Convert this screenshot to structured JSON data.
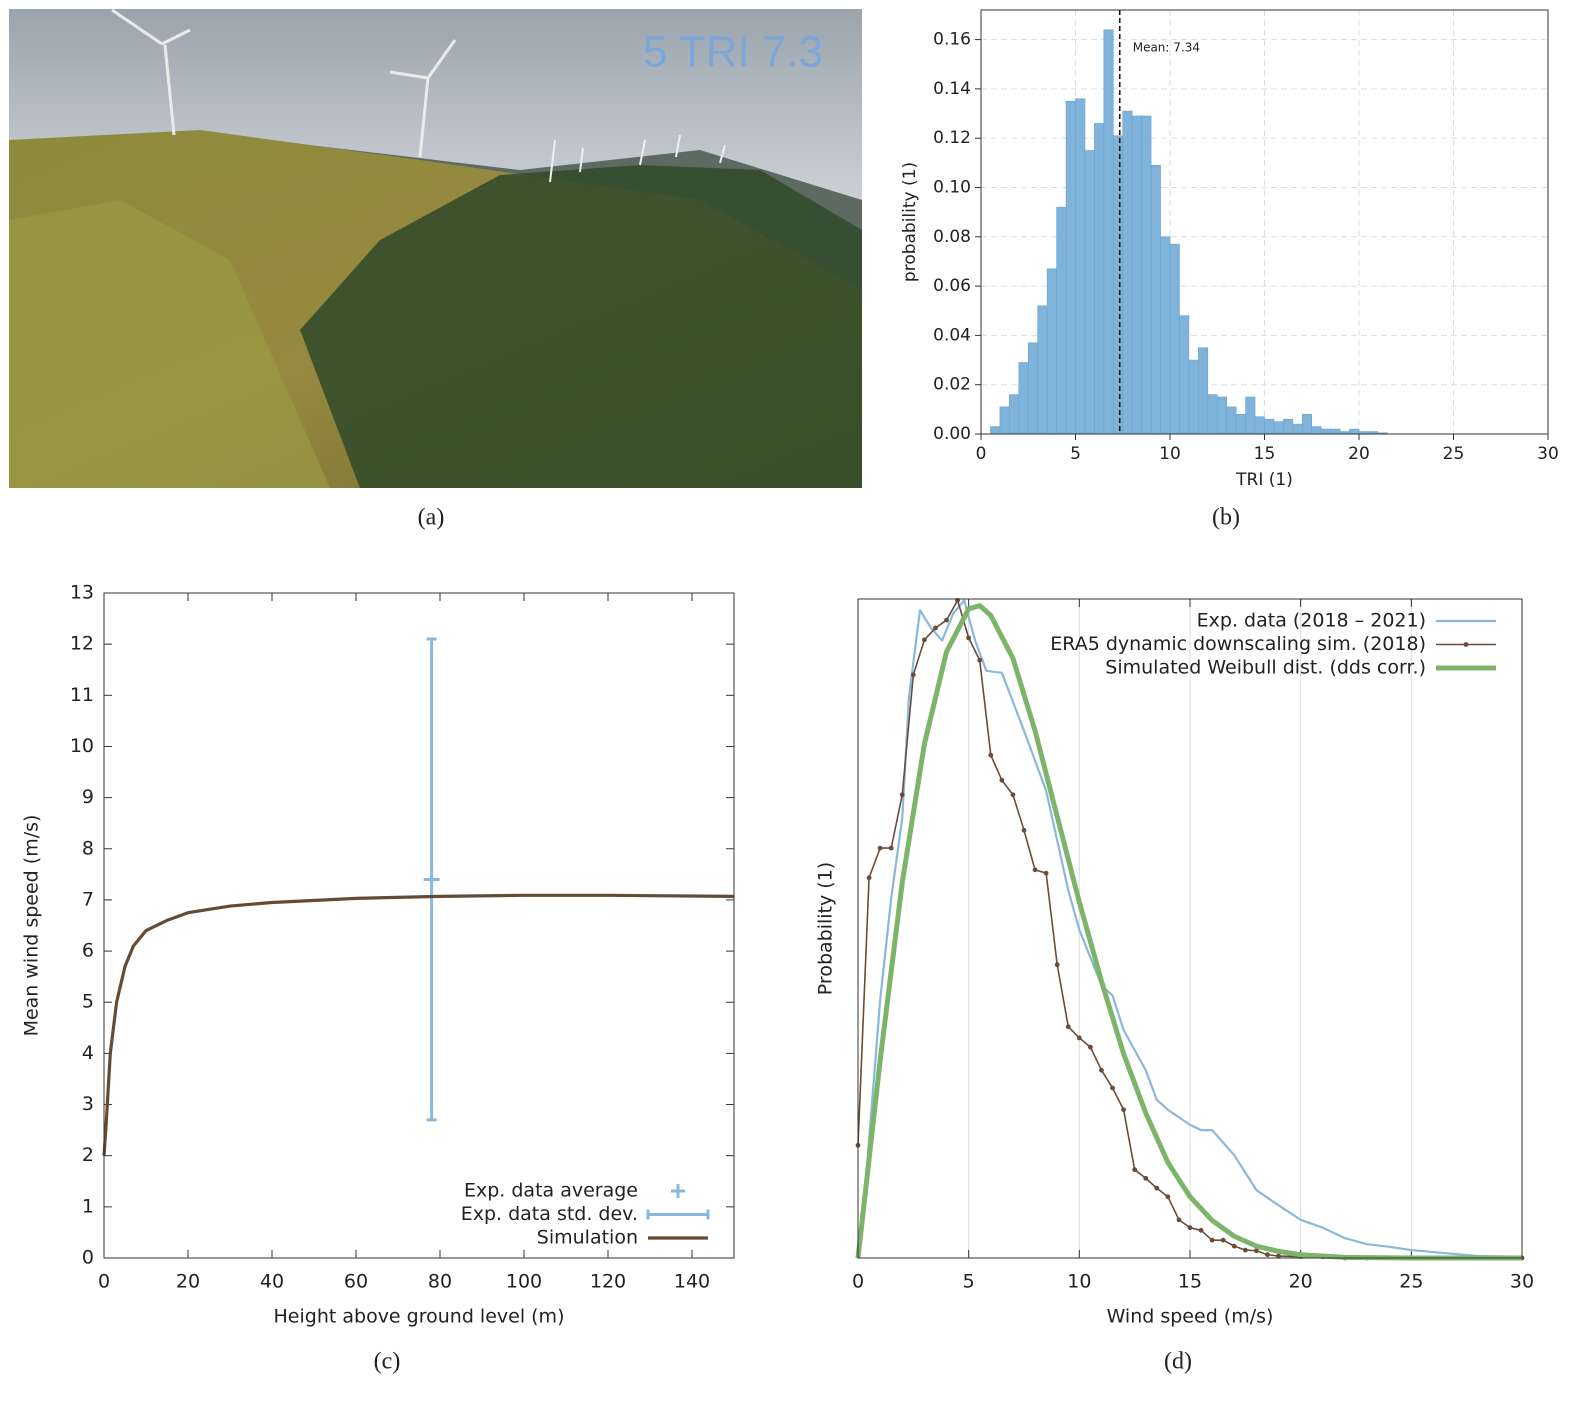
{
  "photo": {
    "overlay_text": "5 TRI 7.3",
    "caption": "(a)"
  },
  "chart_data": [
    {
      "type": "histogram",
      "caption": "(b)",
      "x_label": "TRI (1)",
      "y_label": "probability (1)",
      "color": "#7fb3d9",
      "grid": true,
      "mean": 7.34,
      "mean_label": "Mean: 7.34",
      "bins": [
        0.5,
        1,
        1.5,
        2,
        2.5,
        3,
        3.5,
        4,
        4.5,
        5,
        5.5,
        6,
        6.5,
        7,
        7.5,
        8,
        8.5,
        9,
        9.5,
        10,
        10.5,
        11,
        11.5,
        12,
        12.5,
        13,
        13.5,
        14,
        14.5,
        15,
        15.5,
        16,
        16.5,
        17,
        17.5,
        18,
        18.5,
        19,
        19.5,
        20,
        20.5,
        21,
        21.5
      ],
      "values": [
        0.003,
        0.011,
        0.016,
        0.029,
        0.037,
        0.052,
        0.067,
        0.092,
        0.135,
        0.136,
        0.115,
        0.126,
        0.164,
        0.121,
        0.131,
        0.129,
        0.129,
        0.109,
        0.08,
        0.077,
        0.048,
        0.03,
        0.035,
        0.016,
        0.015,
        0.011,
        0.008,
        0.015,
        0.007,
        0.006,
        0.005,
        0.006,
        0.004,
        0.008,
        0.003,
        0.002,
        0.002,
        0.001,
        0.002,
        0.001,
        0.001,
        0.0005
      ],
      "xlim": [
        0,
        30
      ],
      "xticks": [
        0,
        5,
        10,
        15,
        20,
        25,
        30
      ],
      "ylim": [
        0,
        0.172
      ],
      "yticks": [
        {
          "value": 0,
          "label": "0.00"
        },
        0.02,
        0.04,
        0.06,
        0.08,
        {
          "value": 0.1,
          "label": "0.10"
        },
        0.12,
        0.14,
        0.16
      ]
    },
    {
      "type": "line",
      "caption": "(c)",
      "x_label": "Height above ground level (m)",
      "y_label": "Mean wind speed (m/s)",
      "grid": false,
      "legend": "lower right",
      "xlim": [
        0,
        150
      ],
      "xticks": [
        0,
        20,
        40,
        60,
        80,
        100,
        120,
        140
      ],
      "ylim": [
        0,
        13
      ],
      "yticks": [
        0,
        1,
        2,
        3,
        4,
        5,
        6,
        7,
        8,
        9,
        10,
        11,
        12,
        13
      ],
      "series": [
        {
          "name": "Exp. data average",
          "color": "#8ab8dc",
          "marker": "plus",
          "line": false,
          "error_name": "Exp. data std. dev.",
          "x": [
            78
          ],
          "values": [
            7.4
          ],
          "errors": [
            4.7
          ]
        },
        {
          "name": "Simulation",
          "color": "#664b33",
          "linewidth": "thick",
          "x": [
            0,
            0.5,
            1.5,
            3,
            5,
            7,
            10,
            15,
            20,
            30,
            40,
            60,
            80,
            100,
            120,
            150
          ],
          "values": [
            2,
            2.6,
            4,
            5,
            5.7,
            6.1,
            6.4,
            6.6,
            6.75,
            6.88,
            6.95,
            7.03,
            7.07,
            7.09,
            7.09,
            7.07
          ]
        }
      ]
    },
    {
      "type": "line",
      "caption": "(d)",
      "x_label": "Wind speed (m/s)",
      "y_label": "Probability (1)",
      "grid": "x",
      "legend": "upper right",
      "xlim": [
        0,
        30
      ],
      "xticks": [
        0,
        5,
        10,
        15,
        20,
        25,
        30
      ],
      "ylim": [
        0,
        0.1
      ],
      "series": [
        {
          "name": "Exp. data (2018 – 2021)",
          "color": "#8ab8dc",
          "linewidth": "medium",
          "x": [
            0,
            0.25,
            1,
            1.5,
            2,
            2.3,
            2.8,
            3.3,
            3.8,
            4.3,
            4.8,
            5.3,
            5.8,
            6.5,
            7.5,
            8.5,
            9.5,
            10,
            11,
            11.5,
            12,
            13,
            13.5,
            14,
            15,
            15.5,
            16,
            17,
            18,
            19,
            20,
            21,
            22,
            23,
            24,
            25,
            26,
            27,
            28,
            30
          ],
          "values": [
            0,
            0.0073,
            0.0391,
            0.0546,
            0.0668,
            0.085,
            0.0983,
            0.0956,
            0.0937,
            0.0978,
            0.0998,
            0.0936,
            0.0891,
            0.0888,
            0.08,
            0.0709,
            0.0558,
            0.0498,
            0.0414,
            0.0398,
            0.0346,
            0.0285,
            0.024,
            0.0225,
            0.0202,
            0.0194,
            0.0194,
            0.0156,
            0.0103,
            0.008,
            0.0058,
            0.0046,
            0.003,
            0.0021,
            0.0017,
            0.0012,
            0.0009,
            0.0006,
            0.0003,
            0.0002
          ]
        },
        {
          "name": "ERA5 dynamic downscaling sim. (2018)",
          "color": "#6b4c36",
          "linewidth": "thin",
          "marker": "dot",
          "x": [
            0,
            0.5,
            1,
            1.5,
            2,
            2.5,
            3,
            3.5,
            4,
            4.5,
            5,
            5.5,
            6,
            6.5,
            7,
            7.5,
            8,
            8.5,
            9,
            9.5,
            10,
            10.5,
            11,
            11.5,
            12,
            12.5,
            13,
            13.5,
            14,
            14.5,
            15,
            15.5,
            16,
            16.5,
            17,
            17.5,
            18,
            18.5,
            19,
            20,
            21,
            22,
            23,
            25,
            30
          ],
          "values": [
            0.0171,
            0.0577,
            0.0622,
            0.0622,
            0.0703,
            0.0885,
            0.0938,
            0.0956,
            0.0968,
            0.0998,
            0.0941,
            0.0907,
            0.0763,
            0.0725,
            0.0703,
            0.0649,
            0.0589,
            0.0584,
            0.0445,
            0.0351,
            0.0334,
            0.032,
            0.0285,
            0.0258,
            0.0225,
            0.0134,
            0.0121,
            0.0106,
            0.0093,
            0.0058,
            0.0046,
            0.0042,
            0.0027,
            0.0027,
            0.0018,
            0.0012,
            0.0011,
            0.0005,
            0.0003,
            0.0002,
            0.0002,
            0,
            0,
            0,
            0
          ]
        },
        {
          "name": "Simulated Weibull dist. (dds corr.)",
          "color": "#7cb46a",
          "linewidth": "heavy",
          "x": [
            0,
            1,
            2,
            3,
            4,
            5,
            5.5,
            6,
            7,
            8,
            9,
            10,
            11,
            12,
            13,
            14,
            15,
            16,
            17,
            18,
            19,
            20,
            22,
            25,
            30
          ],
          "values": [
            0,
            0.03,
            0.057,
            0.078,
            0.092,
            0.0985,
            0.099,
            0.0975,
            0.091,
            0.08,
            0.067,
            0.054,
            0.042,
            0.031,
            0.022,
            0.0145,
            0.0093,
            0.0057,
            0.0033,
            0.0018,
            0.001,
            0.0005,
            0.0001,
            0,
            0
          ]
        }
      ]
    }
  ]
}
